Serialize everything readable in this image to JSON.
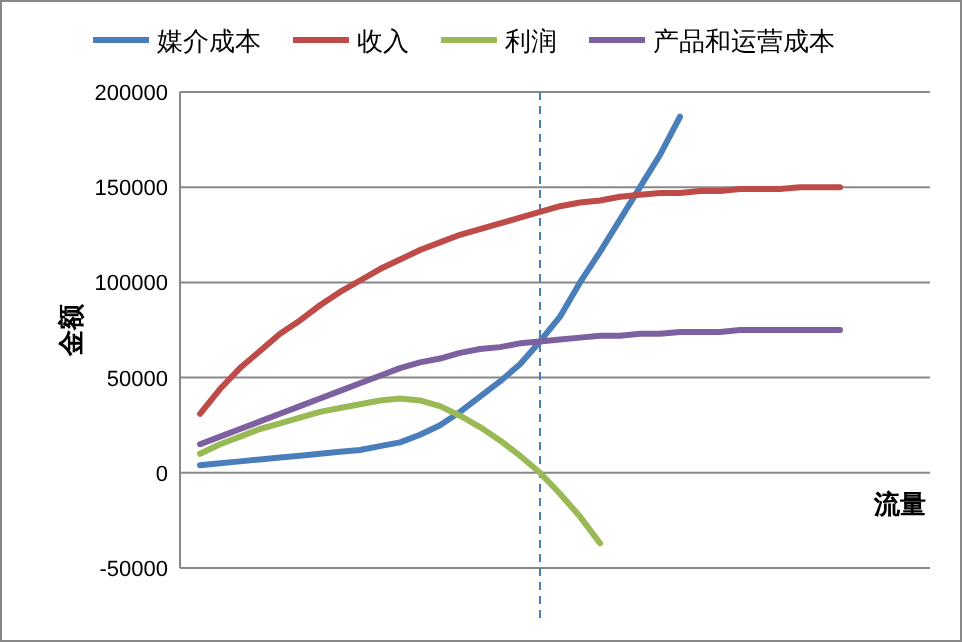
{
  "chart_data": {
    "type": "line",
    "xlabel": "流量",
    "ylabel": "金额",
    "categories": [
      null,
      null,
      null,
      null,
      null,
      null,
      null,
      null,
      null,
      null,
      null,
      null,
      null,
      null,
      null,
      null,
      null,
      null,
      null,
      null,
      null,
      null,
      null,
      null,
      null,
      null,
      null,
      null,
      null,
      null,
      null,
      null,
      null
    ],
    "series": [
      {
        "name": "媒介成本",
        "color": "#4a7ebb",
        "values": [
          4000,
          5000,
          6000,
          7000,
          8000,
          9000,
          10000,
          11000,
          12000,
          14000,
          16000,
          20000,
          25000,
          32000,
          40000,
          48000,
          57000,
          69000,
          82000,
          100000,
          116000,
          133000,
          150000,
          167000,
          187000,
          null,
          null,
          null,
          null,
          null,
          null,
          null,
          null
        ]
      },
      {
        "name": "收入",
        "color": "#be4b48",
        "values": [
          31000,
          44000,
          55000,
          64000,
          73000,
          80000,
          88000,
          95000,
          101000,
          107000,
          112000,
          117000,
          121000,
          125000,
          128000,
          131000,
          134000,
          137000,
          140000,
          142000,
          143000,
          145000,
          146000,
          147000,
          147000,
          148000,
          148000,
          149000,
          149000,
          149000,
          150000,
          150000,
          150000
        ]
      },
      {
        "name": "利润",
        "color": "#98b954",
        "values": [
          10000,
          15000,
          19000,
          23000,
          26000,
          29000,
          32000,
          34000,
          36000,
          38000,
          39000,
          38000,
          35000,
          30000,
          24000,
          17000,
          9000,
          0,
          -11000,
          -23000,
          -37000,
          null,
          null,
          null,
          null,
          null,
          null,
          null,
          null,
          null,
          null,
          null,
          null
        ]
      },
      {
        "name": "产品和运营成本",
        "color": "#7d60a0",
        "values": [
          15000,
          19000,
          23000,
          27000,
          31000,
          35000,
          39000,
          43000,
          47000,
          51000,
          55000,
          58000,
          60000,
          63000,
          65000,
          66000,
          68000,
          69000,
          70000,
          71000,
          72000,
          72000,
          73000,
          73000,
          74000,
          74000,
          74000,
          75000,
          75000,
          75000,
          75000,
          75000,
          75000
        ]
      }
    ],
    "ylim": [
      -50000,
      200000
    ],
    "yticks": [
      -50000,
      0,
      50000,
      100000,
      150000,
      200000
    ],
    "grid": "y",
    "legend": "top",
    "marker": "none",
    "line_style": "solid"
  }
}
